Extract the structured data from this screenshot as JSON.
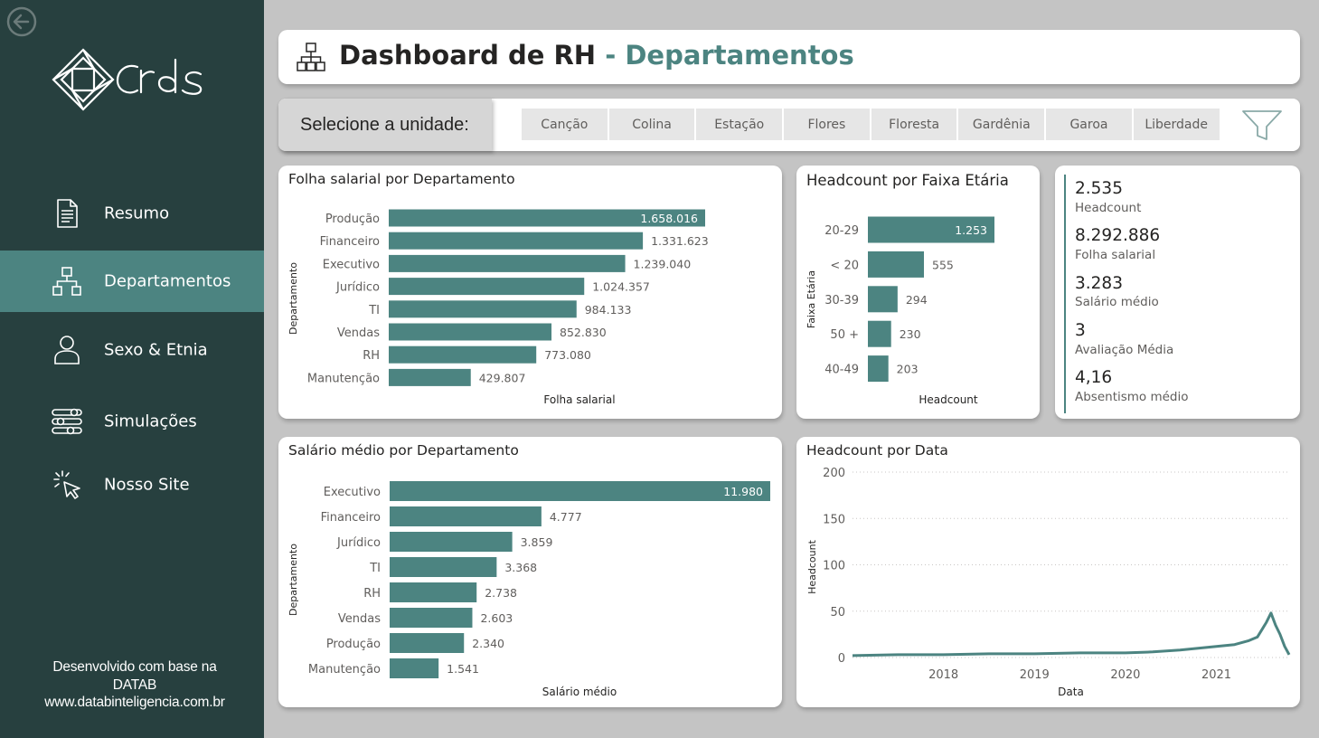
{
  "colors": {
    "sidebar_bg": "#27403f",
    "active_nav": "#4c8481",
    "bar": "#4c8481",
    "page_bg": "#c4c4c4"
  },
  "sidebar": {
    "logo_text": "Crds",
    "back_icon": "arrow-left-circle-icon",
    "items": [
      {
        "label": "Resumo",
        "icon": "document-icon",
        "active": false
      },
      {
        "label": "Departamentos",
        "icon": "org-chart-icon",
        "active": true
      },
      {
        "label": "Sexo & Etnia",
        "icon": "user-icon",
        "active": false
      },
      {
        "label": "Simulações",
        "icon": "sliders-icon",
        "active": false
      },
      {
        "label": "Nosso Site",
        "icon": "cursor-click-icon",
        "active": false
      }
    ],
    "credits": [
      "Desenvolvido com base na",
      "DATAB",
      "www.databinteligencia.com.br"
    ]
  },
  "header": {
    "title": "Dashboard de RH",
    "separator": "-",
    "subtitle": "Departamentos",
    "icon": "org-chart-icon"
  },
  "filter": {
    "label": "Selecione a unidade:",
    "options": [
      "Canção",
      "Colina",
      "Estação",
      "Flores",
      "Floresta",
      "Gardênia",
      "Garoa",
      "Liberdade"
    ],
    "clear_icon": "funnel-icon"
  },
  "kpis": [
    {
      "value": "2.535",
      "label": "Headcount"
    },
    {
      "value": "8.292.886",
      "label": "Folha salarial"
    },
    {
      "value": "3.283",
      "label": "Salário médio"
    },
    {
      "value": "3",
      "label": "Avaliação Média"
    },
    {
      "value": "4,16",
      "label": "Absentismo médio"
    }
  ],
  "chart_data": [
    {
      "id": "folha",
      "type": "bar",
      "orientation": "horizontal",
      "title": "Folha salarial por Departamento",
      "xlabel": "Folha salarial",
      "ylabel": "Departamento",
      "categories": [
        "Produção",
        "Financeiro",
        "Executivo",
        "Jurídico",
        "TI",
        "Vendas",
        "RH",
        "Manutenção"
      ],
      "values": [
        1658016,
        1331623,
        1239040,
        1024357,
        984133,
        852830,
        773080,
        429807
      ],
      "labels": [
        "1.658.016",
        "1.331.623",
        "1.239.040",
        "1.024.357",
        "984.133",
        "852.830",
        "773.080",
        "429.807"
      ],
      "xlim": [
        0,
        1658016
      ]
    },
    {
      "id": "faixa",
      "type": "bar",
      "orientation": "horizontal",
      "title": "Headcount por Faixa Etária",
      "xlabel": "Headcount",
      "ylabel": "Faixa Etária",
      "categories": [
        "20-29",
        "< 20",
        "30-39",
        "50 +",
        "40-49"
      ],
      "values": [
        1253,
        555,
        294,
        230,
        203
      ],
      "labels": [
        "1.253",
        "555",
        "294",
        "230",
        "203"
      ],
      "xlim": [
        0,
        1253
      ]
    },
    {
      "id": "salario",
      "type": "bar",
      "orientation": "horizontal",
      "title": "Salário médio por Departamento",
      "xlabel": "Salário médio",
      "ylabel": "Departamento",
      "categories": [
        "Executivo",
        "Financeiro",
        "Jurídico",
        "TI",
        "RH",
        "Vendas",
        "Produção",
        "Manutenção"
      ],
      "values": [
        11980,
        4777,
        3859,
        3368,
        2738,
        2603,
        2340,
        1541
      ],
      "labels": [
        "11.980",
        "4.777",
        "3.859",
        "3.368",
        "2.738",
        "2.603",
        "2.340",
        "1.541"
      ],
      "xlim": [
        0,
        11980
      ]
    },
    {
      "id": "data",
      "type": "area",
      "title": "Headcount por Data",
      "xlabel": "Data",
      "ylabel": "Headcount",
      "ylim": [
        0,
        200
      ],
      "yticks": [
        "0",
        "50",
        "100",
        "150",
        "200"
      ],
      "xticks": [
        "2018",
        "2019",
        "2020",
        "2021"
      ],
      "xlim": [
        2017.0,
        2021.8
      ],
      "grid": true,
      "x": [
        2017.0,
        2017.5,
        2018.0,
        2018.5,
        2019.0,
        2019.5,
        2020.0,
        2020.3,
        2020.6,
        2020.8,
        2021.0,
        2021.2,
        2021.35,
        2021.45,
        2021.5,
        2021.55,
        2021.6,
        2021.65,
        2021.7,
        2021.75,
        2021.8
      ],
      "y": [
        2,
        3,
        3,
        4,
        4,
        5,
        5,
        6,
        8,
        10,
        12,
        14,
        18,
        22,
        30,
        38,
        48,
        35,
        25,
        12,
        3
      ]
    }
  ]
}
